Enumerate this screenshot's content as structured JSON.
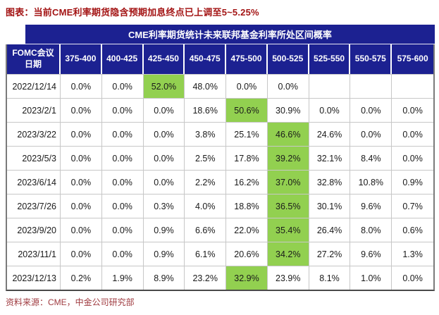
{
  "figure_title": "图表：当前CME利率期货隐含预期加息终点已上调至5~5.25%",
  "source_note": "资料来源：CME，中金公司研究部",
  "colors": {
    "table_header_bg": "#1c2191",
    "highlight_green": "#92d050",
    "figure_title_red": "#a31414",
    "source_note_red": "#9f3a3f"
  },
  "chart_data": {
    "type": "table",
    "title": "CME利率期货统计未来联邦基金利率所处区间概率",
    "columns": [
      "FOMC会议\n日期",
      "375-400",
      "400-425",
      "425-450",
      "450-475",
      "475-500",
      "500-525",
      "525-550",
      "550-575",
      "575-600"
    ],
    "rows": [
      {
        "date": "2022/12/14",
        "values": [
          "0.0%",
          "0.0%",
          "52.0%",
          "48.0%",
          "0.0%",
          "0.0%",
          "",
          "",
          ""
        ],
        "highlight_col": 2
      },
      {
        "date": "2023/2/1",
        "values": [
          "0.0%",
          "0.0%",
          "0.0%",
          "18.6%",
          "50.6%",
          "30.9%",
          "0.0%",
          "0.0%",
          "0.0%"
        ],
        "highlight_col": 4
      },
      {
        "date": "2023/3/22",
        "values": [
          "0.0%",
          "0.0%",
          "0.0%",
          "3.8%",
          "25.1%",
          "46.6%",
          "24.6%",
          "0.0%",
          "0.0%"
        ],
        "highlight_col": 5
      },
      {
        "date": "2023/5/3",
        "values": [
          "0.0%",
          "0.0%",
          "0.0%",
          "2.5%",
          "17.8%",
          "39.2%",
          "32.1%",
          "8.4%",
          "0.0%"
        ],
        "highlight_col": 5
      },
      {
        "date": "2023/6/14",
        "values": [
          "0.0%",
          "0.0%",
          "0.0%",
          "2.2%",
          "16.2%",
          "37.0%",
          "32.8%",
          "10.8%",
          "0.9%"
        ],
        "highlight_col": 5
      },
      {
        "date": "2023/7/26",
        "values": [
          "0.0%",
          "0.0%",
          "0.3%",
          "4.0%",
          "18.8%",
          "36.5%",
          "30.1%",
          "9.6%",
          "0.7%"
        ],
        "highlight_col": 5
      },
      {
        "date": "2023/9/20",
        "values": [
          "0.0%",
          "0.0%",
          "0.9%",
          "6.6%",
          "22.0%",
          "35.4%",
          "26.4%",
          "8.0%",
          "0.6%"
        ],
        "highlight_col": 5
      },
      {
        "date": "2023/11/1",
        "values": [
          "0.0%",
          "0.0%",
          "0.9%",
          "6.1%",
          "20.6%",
          "34.2%",
          "27.2%",
          "9.6%",
          "1.3%"
        ],
        "highlight_col": 5
      },
      {
        "date": "2023/12/13",
        "values": [
          "0.2%",
          "1.9%",
          "8.9%",
          "23.2%",
          "32.9%",
          "23.9%",
          "8.1%",
          "1.0%",
          "0.0%"
        ],
        "highlight_col": 4
      }
    ]
  }
}
